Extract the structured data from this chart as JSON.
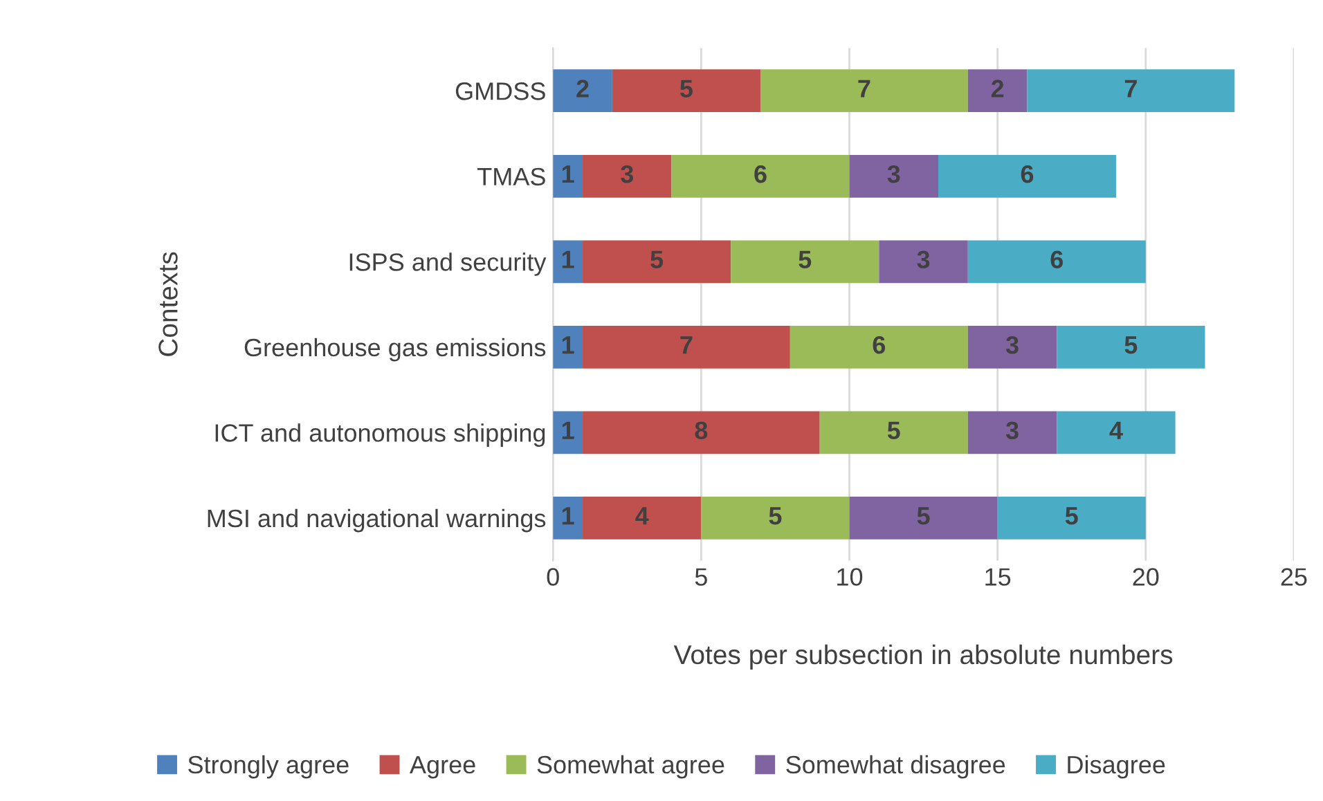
{
  "chart_data": {
    "type": "bar",
    "orientation": "horizontal",
    "stacked": true,
    "categories": [
      "GMDSS",
      "TMAS",
      "ISPS and security",
      "Greenhouse gas emissions",
      "ICT and autonomous shipping",
      "MSI and navigational warnings"
    ],
    "series": [
      {
        "name": "Strongly agree",
        "color": "#4f81bd",
        "values": [
          2,
          1,
          1,
          1,
          1,
          1
        ]
      },
      {
        "name": "Agree",
        "color": "#c0504d",
        "values": [
          5,
          3,
          5,
          7,
          8,
          4
        ]
      },
      {
        "name": "Somewhat agree",
        "color": "#9bbb59",
        "values": [
          7,
          6,
          5,
          6,
          5,
          5
        ]
      },
      {
        "name": "Somewhat disagree",
        "color": "#8064a2",
        "values": [
          2,
          3,
          3,
          3,
          3,
          5
        ]
      },
      {
        "name": "Disagree",
        "color": "#4bacc6",
        "values": [
          7,
          6,
          6,
          5,
          4,
          5
        ]
      }
    ],
    "xlim": [
      0,
      25
    ],
    "xticks": [
      0,
      5,
      10,
      15,
      20,
      25
    ],
    "grid": "x",
    "legend": "bottom",
    "data_labels": true,
    "xlabel": "Votes per subsection in absolute numbers",
    "ylabel": "Contexts"
  }
}
